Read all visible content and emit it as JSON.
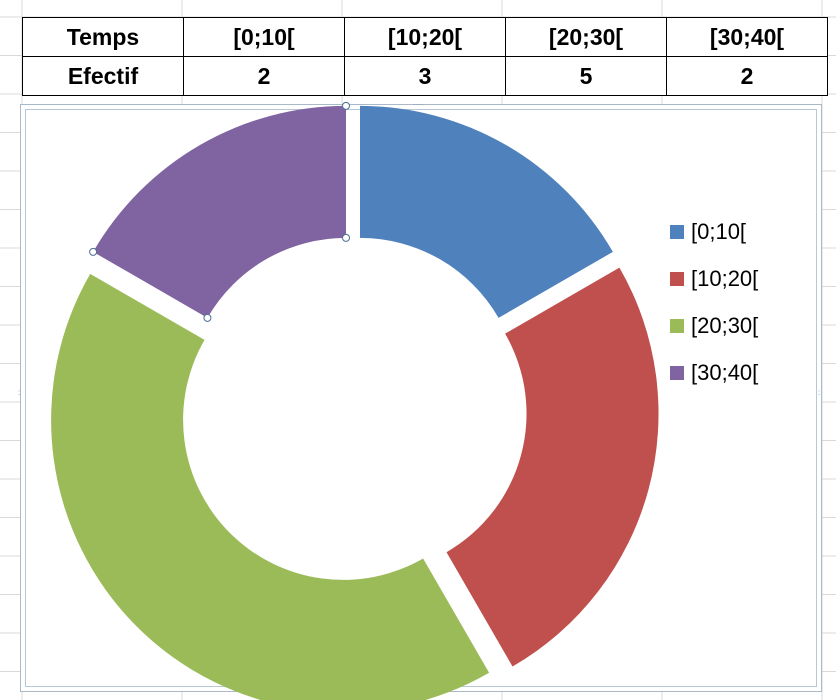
{
  "table": {
    "rows": [
      [
        "Temps",
        "[0;10[",
        "[10;20[",
        "[20;30[",
        "[30;40["
      ],
      [
        "Efectif",
        "2",
        "3",
        "5",
        "2"
      ]
    ]
  },
  "chart_data": {
    "type": "pie",
    "variant": "doughnut-exploded",
    "categories": [
      "[0;10[",
      "[10;20[",
      "[20;30[",
      "[30;40["
    ],
    "values": [
      2,
      3,
      5,
      2
    ],
    "colors": [
      "#4f81bd",
      "#c0504d",
      "#9bbb59",
      "#8064a2"
    ],
    "legend": "right",
    "selected_point": "[30;40["
  }
}
